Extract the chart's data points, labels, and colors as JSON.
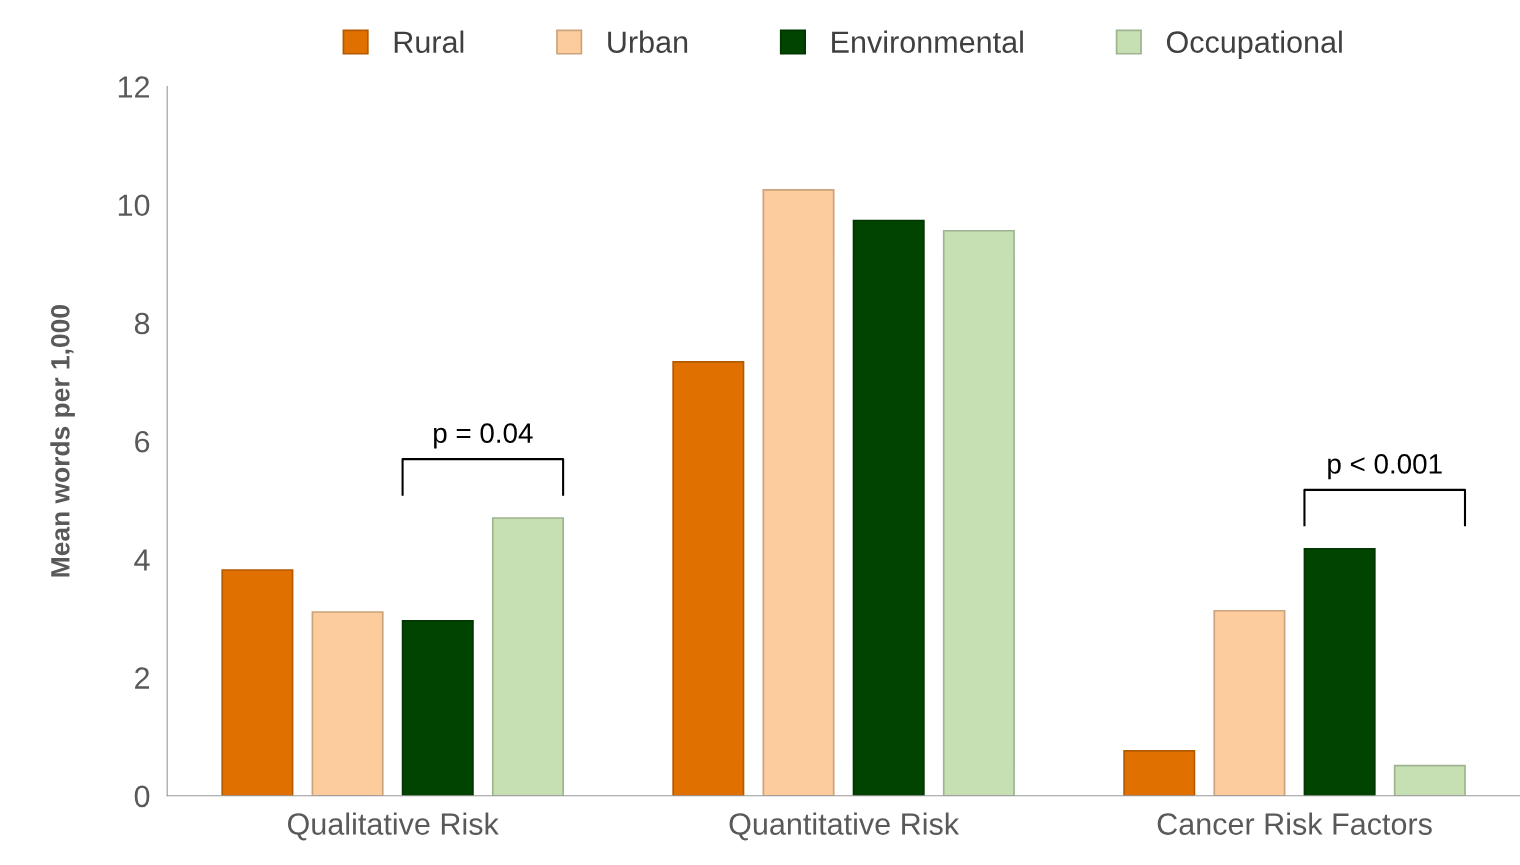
{
  "chart_data": {
    "type": "bar",
    "ylabel": "Mean words per 1,000",
    "categories": [
      "Qualitative Risk",
      "Quantitative Risk",
      "Cancer Risk Factors"
    ],
    "series": [
      {
        "name": "Rural",
        "color": "#e07000",
        "values": [
          3.82,
          7.34,
          0.76
        ]
      },
      {
        "name": "Urban",
        "color": "#fdcc9c",
        "values": [
          3.11,
          10.25,
          3.13
        ]
      },
      {
        "name": "Environmental",
        "color": "#004400",
        "values": [
          2.96,
          9.73,
          4.18
        ]
      },
      {
        "name": "Occupational",
        "color": "#c6e0b4",
        "values": [
          4.7,
          9.56,
          0.51
        ]
      }
    ],
    "ylim": [
      0,
      12
    ],
    "yticks": [
      0,
      2,
      4,
      6,
      8,
      10,
      12
    ],
    "grid": false,
    "legend": "top",
    "annotations": [
      "p = 0.04",
      "p < 0.001"
    ]
  }
}
